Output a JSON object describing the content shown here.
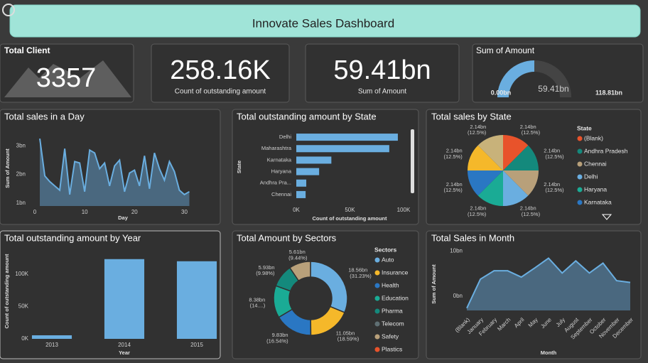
{
  "header": {
    "title": "Innovate Sales Dashboard"
  },
  "cards": [
    {
      "title": "Total Client",
      "value": "3357"
    },
    {
      "value": "258.16K",
      "label": "Count of outstanding amount"
    },
    {
      "value": "59.41bn",
      "label": "Sum of Amount"
    }
  ],
  "chart_data": [
    {
      "type": "gauge",
      "title": "Sum of Amount",
      "ylim": [
        {
          "value": 0,
          "label": "0.00bn"
        },
        {
          "value": 118.81,
          "label": "118.81bn"
        }
      ],
      "values": [
        59.41
      ],
      "value_labels": [
        "59.41bn"
      ],
      "color": "#6aaee0"
    },
    {
      "type": "area",
      "title": "Total sales in a Day",
      "xlabel": "Day",
      "ylabel": "Sum of Amount",
      "x": [
        1,
        2,
        3,
        4,
        5,
        6,
        7,
        8,
        9,
        10,
        11,
        12,
        13,
        14,
        15,
        16,
        17,
        18,
        19,
        20,
        21,
        22,
        23,
        24,
        25,
        26,
        27,
        28,
        29,
        30,
        31
      ],
      "values": [
        3.25,
        1.95,
        1.75,
        1.6,
        1.45,
        2.9,
        1.3,
        2.45,
        2.4,
        1.4,
        2.85,
        2.75,
        2.2,
        2.4,
        1.6,
        2.3,
        2.5,
        1.4,
        2.05,
        2.15,
        1.6,
        2.65,
        1.5,
        2.75,
        2.2,
        1.8,
        2.45,
        2.1,
        1.45,
        1.3,
        1.4
      ],
      "xlim": [
        -1,
        31.5
      ],
      "xticks": [
        0,
        10,
        20,
        30
      ],
      "ylim": [
        0.9,
        3.5
      ],
      "yticks": [
        {
          "value": 1,
          "label": "1bn"
        },
        {
          "value": 2,
          "label": "2bn"
        },
        {
          "value": 3,
          "label": "3bn"
        }
      ],
      "color": "#6aaee0"
    },
    {
      "type": "hbar",
      "title": "Total outstanding amount by State",
      "xlabel": "Count of outstanding amount",
      "ylabel": "State",
      "categories": [
        "Delhi",
        "Maharashtra",
        "Karnataka",
        "Haryana",
        "Andhra Pra...",
        "Chennai"
      ],
      "values": [
        94700,
        86700,
        32700,
        21300,
        9300,
        8700
      ],
      "xlim": [
        0,
        106000
      ],
      "xticks": [
        {
          "value": 0,
          "label": "0K"
        },
        {
          "value": 50000,
          "label": "50K"
        },
        {
          "value": 100000,
          "label": "100K"
        }
      ],
      "color": "#6aaee0"
    },
    {
      "type": "pie",
      "title": "Total sales by State",
      "legend_title": "State",
      "categories": [
        "(Blank)",
        "Andhra Pradesh",
        "Chennai",
        "Delhi",
        "Haryana",
        "Karnataka",
        null,
        null
      ],
      "values": [
        2.14,
        2.14,
        2.14,
        2.14,
        2.14,
        2.14,
        2.14,
        2.14
      ],
      "value_labels": [
        "2.14bn (12.5%)",
        "2.14bn (12.5%)",
        "2.14bn (12.5%)",
        "2.14bn (12.5%)",
        "2.14bn (12.5%)",
        "2.14bn (12.5%)",
        "2.14bn (12.5%)",
        "2.14bn (12.5%)"
      ],
      "colors": [
        "#e8532b",
        "#14897c",
        "#b8a07a",
        "#6aaee0",
        "#1aab95",
        "#2a77c3",
        "#f5b82a",
        "#c8b27a"
      ]
    },
    {
      "type": "bar",
      "title": "Total outstanding amount by Year",
      "xlabel": "Year",
      "ylabel": "Count of outstanding amount",
      "categories": [
        "2013",
        "2014",
        "2015"
      ],
      "values": [
        5500,
        123300,
        120000
      ],
      "ylim": [
        0,
        145000
      ],
      "yticks": [
        {
          "value": 0,
          "label": "0K"
        },
        {
          "value": 50000,
          "label": "50K"
        },
        {
          "value": 100000,
          "label": "100K"
        }
      ],
      "color": "#6aaee0"
    },
    {
      "type": "donut",
      "title": "Total Amount by Sectors",
      "legend_title": "Sectors",
      "categories": [
        "Auto",
        "Insurance",
        "Health",
        "Education",
        "Pharma",
        "Telecom",
        "Safety",
        "Plastics"
      ],
      "values": [
        18.56,
        11.05,
        9.83,
        8.38,
        5.93,
        null,
        5.61,
        null
      ],
      "value_labels": [
        "18.56bn (31.23%)",
        "11.05bn (18.59%)",
        "9.83bn (16.54%)",
        "8.38bn (14....)",
        "5.93bn (9.98%)",
        null,
        "5.61bn (9.44%)",
        null
      ],
      "colors": [
        "#6aaee0",
        "#f5b82a",
        "#2a77c3",
        "#1aab95",
        "#14897c",
        "#5f6f73",
        "#b8a07a",
        "#e8532b"
      ]
    },
    {
      "type": "area",
      "title": "Total Sales in Month",
      "xlabel": "Month",
      "ylabel": "Sum of Amount",
      "categories": [
        "(Blank)",
        "January",
        "February",
        "March",
        "April",
        "May",
        "June",
        "July",
        "August",
        "September",
        "October",
        "November",
        "December"
      ],
      "values": [
        -2.7,
        3.75,
        5.6,
        5.6,
        4.2,
        6.25,
        8.4,
        5.1,
        7.8,
        5.1,
        7.3,
        3.4,
        3.0
      ],
      "ylim": [
        -3.2,
        11.3
      ],
      "yticks": [
        {
          "value": 0,
          "label": "0bn"
        },
        {
          "value": 10,
          "label": "10bn"
        }
      ],
      "color": "#6aaee0"
    }
  ]
}
